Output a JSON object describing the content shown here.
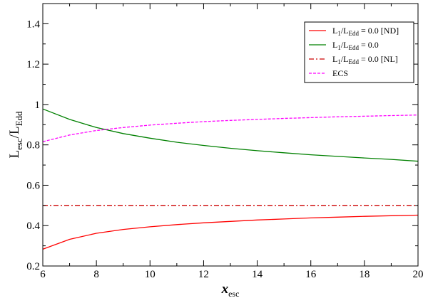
{
  "chart_data": {
    "type": "line",
    "xlabel": {
      "main": "x",
      "sub": "esc"
    },
    "ylabel": {
      "part1": "L",
      "sub1": "esc",
      "part2": "/L",
      "sub2": "Edd"
    },
    "xlim": [
      6,
      20
    ],
    "ylim": [
      0.2,
      1.5
    ],
    "xticks": [
      6,
      8,
      10,
      12,
      14,
      16,
      18,
      20
    ],
    "yticks": [
      0.2,
      0.4,
      0.6,
      0.8,
      1.0,
      1.2,
      1.4
    ],
    "ytick_labels": [
      "0.2",
      "0.4",
      "0.6",
      "0.8",
      "1",
      "1.2",
      "1.4"
    ],
    "grid": false,
    "legend_position": "top-right",
    "x": [
      6,
      7,
      8,
      9,
      10,
      11,
      12,
      13,
      14,
      15,
      16,
      17,
      18,
      19,
      20
    ],
    "series": [
      {
        "legend": {
          "a": "L",
          "a_sub": "1",
          "b": "/L",
          "b_sub": "Edd",
          "tail": " = 0.0 [ND]"
        },
        "color": "#ff0000",
        "dash": "solid",
        "values": [
          0.283,
          0.332,
          0.362,
          0.381,
          0.394,
          0.405,
          0.414,
          0.421,
          0.428,
          0.433,
          0.438,
          0.442,
          0.446,
          0.449,
          0.452
        ]
      },
      {
        "legend": {
          "a": "L",
          "a_sub": "1",
          "b": "/L",
          "b_sub": "Edd",
          "tail": " = 0.0"
        },
        "color": "#008000",
        "dash": "solid",
        "values": [
          0.978,
          0.926,
          0.886,
          0.856,
          0.833,
          0.813,
          0.797,
          0.783,
          0.771,
          0.761,
          0.751,
          0.743,
          0.735,
          0.728,
          0.719
        ]
      },
      {
        "legend": {
          "a": "L",
          "a_sub": "1",
          "b": "/L",
          "b_sub": "Edd",
          "tail": " = 0.0 [NL]"
        },
        "color": "#cc0000",
        "dash": "dashdot",
        "values": [
          0.5,
          0.5,
          0.5,
          0.5,
          0.5,
          0.5,
          0.5,
          0.5,
          0.5,
          0.5,
          0.5,
          0.5,
          0.5,
          0.5,
          0.5
        ]
      },
      {
        "legend": {
          "a": "ECS"
        },
        "color": "#ff00ff",
        "dash": "dashed",
        "values": [
          0.816,
          0.849,
          0.871,
          0.886,
          0.898,
          0.907,
          0.915,
          0.921,
          0.926,
          0.931,
          0.935,
          0.939,
          0.942,
          0.945,
          0.948
        ]
      }
    ]
  }
}
